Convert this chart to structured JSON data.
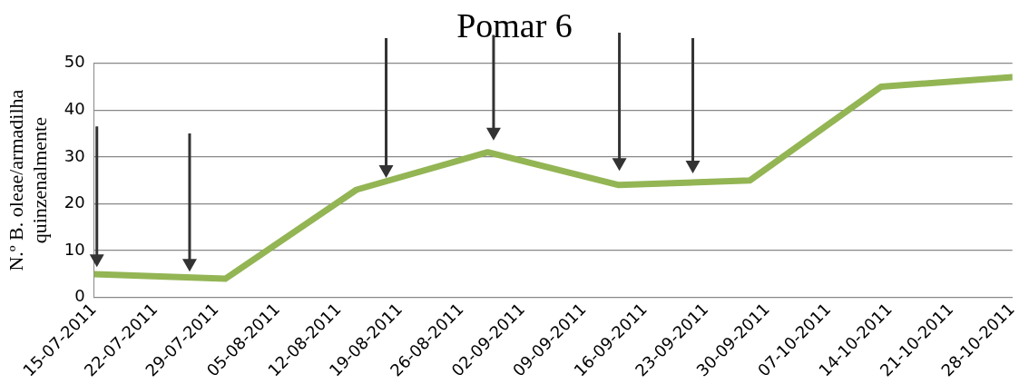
{
  "chart_data": {
    "type": "line",
    "title": "Pomar 6",
    "ylabel": "N.º B. oleae/armadilha quinzenalmente",
    "x": [
      "2011-07-15",
      "2011-07-30",
      "2011-08-14",
      "2011-08-29",
      "2011-09-13",
      "2011-09-28",
      "2011-10-13",
      "2011-10-28"
    ],
    "series": [
      {
        "color": "#93b554",
        "values": [
          5,
          4,
          23,
          31,
          24,
          25,
          45,
          47
        ]
      }
    ],
    "xlim": [
      "2011-07-15",
      "2011-10-28"
    ],
    "xticks": [
      {
        "value": "2011-07-15",
        "label": "15-07-2011"
      },
      {
        "value": "2011-07-22",
        "label": "22-07-2011"
      },
      {
        "value": "2011-07-29",
        "label": "29-07-2011"
      },
      {
        "value": "2011-08-05",
        "label": "05-08-2011"
      },
      {
        "value": "2011-08-12",
        "label": "12-08-2011"
      },
      {
        "value": "2011-08-19",
        "label": "19-08-2011"
      },
      {
        "value": "2011-08-26",
        "label": "26-08-2011"
      },
      {
        "value": "2011-09-02",
        "label": "02-09-2011"
      },
      {
        "value": "2011-09-09",
        "label": "09-09-2011"
      },
      {
        "value": "2011-09-16",
        "label": "16-09-2011"
      },
      {
        "value": "2011-09-23",
        "label": "23-09-2011"
      },
      {
        "value": "2011-09-30",
        "label": "30-09-2011"
      },
      {
        "value": "2011-10-07",
        "label": "07-10-2011"
      },
      {
        "value": "2011-10-14",
        "label": "14-10-2011"
      },
      {
        "value": "2011-10-21",
        "label": "21-10-2011"
      },
      {
        "value": "2011-10-28",
        "label": "28-10-2011"
      }
    ],
    "ylim": [
      0,
      50
    ],
    "yticks": [
      0,
      10,
      20,
      30,
      40,
      50
    ],
    "grid": "y",
    "legend": false,
    "marker": "none",
    "line_style": "solid"
  }
}
